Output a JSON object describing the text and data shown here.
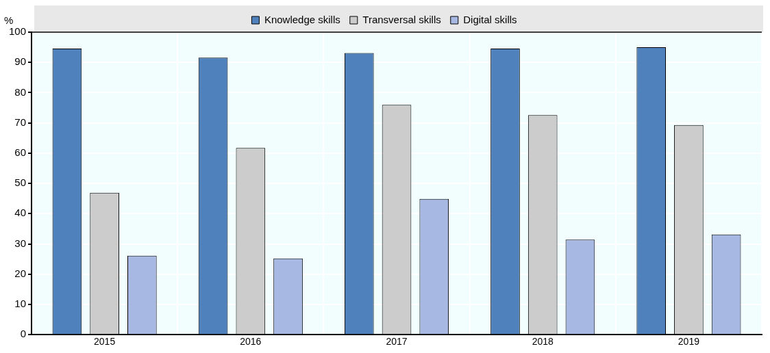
{
  "chart_data": {
    "type": "bar",
    "ylabel": "%",
    "categories": [
      "2015",
      "2016",
      "2017",
      "2018",
      "2019"
    ],
    "series": [
      {
        "name": "Knowledge skills",
        "color": "#4f81bd",
        "values": [
          94.6,
          91.6,
          93.1,
          94.6,
          95.0
        ]
      },
      {
        "name": "Transversal skills",
        "color": "#cccccc",
        "values": [
          46.9,
          61.7,
          76.0,
          72.6,
          69.3
        ]
      },
      {
        "name": "Digital skills",
        "color": "#a7b9e3",
        "values": [
          26.1,
          25.2,
          44.9,
          31.4,
          33.1
        ]
      }
    ],
    "ylim": [
      0,
      100
    ],
    "yticks": [
      0,
      10,
      20,
      30,
      40,
      50,
      60,
      70,
      80,
      90,
      100
    ],
    "grid": true,
    "legend": "top"
  }
}
